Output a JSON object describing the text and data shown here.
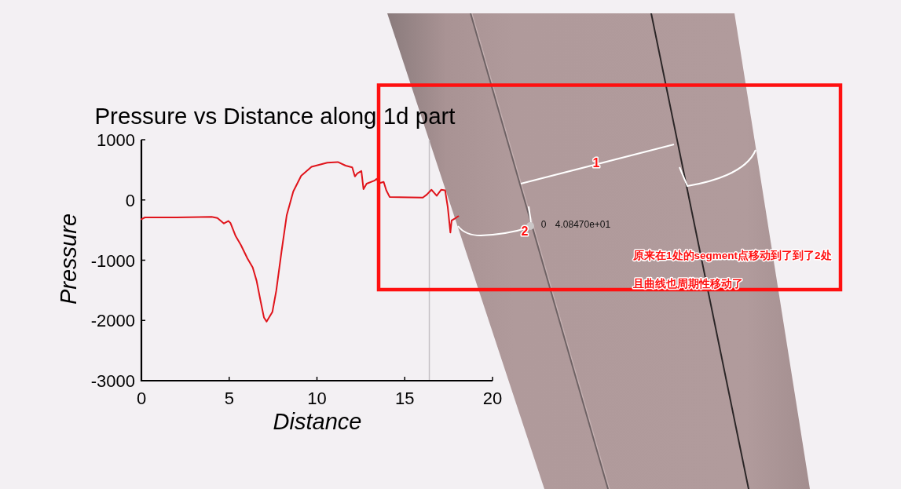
{
  "chart_data": {
    "type": "line",
    "title": "Pressure vs Distance along 1d part",
    "xlabel": "Distance",
    "ylabel": "Pressure",
    "x": [
      0,
      0.2,
      2.0,
      4.0,
      4.33,
      4.7,
      4.95,
      5.07,
      5.37,
      5.67,
      6.04,
      6.34,
      6.56,
      6.79,
      6.98,
      7.13,
      7.46,
      7.68,
      7.98,
      8.28,
      8.65,
      9.1,
      9.69,
      10.59,
      11.19,
      11.63,
      12.01,
      12.16,
      12.3,
      12.53,
      12.65,
      12.83,
      13.27,
      13.39,
      13.57,
      13.8,
      13.95,
      14.14,
      16.03,
      16.26,
      16.52,
      16.82,
      17.08,
      17.3,
      17.45,
      17.6,
      17.67,
      17.9,
      18.05
    ],
    "series": [
      {
        "color": "#e0141b",
        "values": [
          -320,
          -290,
          -290,
          -280,
          -300,
          -390,
          -350,
          -380,
          -600,
          -750,
          -970,
          -1120,
          -1340,
          -1680,
          -1950,
          -2020,
          -1860,
          -1510,
          -860,
          -250,
          140,
          400,
          550,
          620,
          630,
          570,
          540,
          390,
          440,
          480,
          180,
          270,
          320,
          350,
          280,
          300,
          160,
          50,
          40,
          90,
          170,
          70,
          170,
          160,
          -120,
          -540,
          -340,
          -300,
          -270
        ]
      }
    ],
    "xlim": [
      0,
      20
    ],
    "ylim": [
      -3000,
      1000
    ],
    "xticks": [
      0,
      5,
      10,
      15,
      20
    ],
    "yticks": [
      1000,
      0,
      -1000,
      -2000,
      -3000
    ],
    "ref_lines": [
      {
        "axis": "x",
        "value": 16.4,
        "color": "#c4c0c4"
      }
    ],
    "annotations": [
      "1",
      "2",
      "0",
      "4.08470e+01",
      "原来在1处的segment点移动到了到了2处",
      "且曲线也周期性移动了"
    ]
  }
}
